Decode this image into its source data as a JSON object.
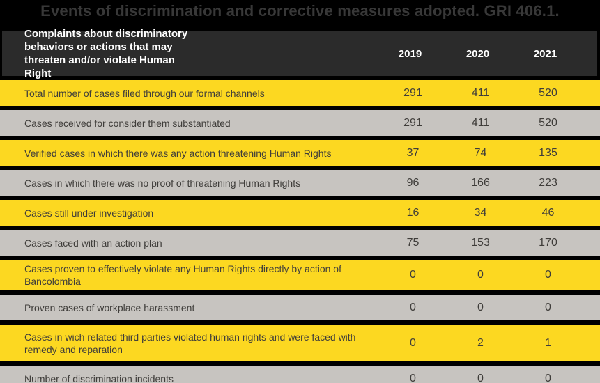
{
  "title": "Events of discrimination and corrective measures adopted. GRI 406.1.",
  "colors": {
    "page_bg": "#000000",
    "header_bg": "#2B2B2B",
    "row_yellow": "#FCD821",
    "row_gray": "#C7C4C0",
    "header_text": "#FFFFFF",
    "row_text": "#3F3D3A",
    "title_text": "#383838"
  },
  "table": {
    "header": {
      "label": "Complaints about discriminatory behaviors or actions that may threaten and/or violate Human Right",
      "years": [
        "2019",
        "2020",
        "2021"
      ]
    },
    "rows": [
      {
        "label": "Total number of cases filed through our formal channels",
        "values": [
          "291",
          "411",
          "520"
        ]
      },
      {
        "label": "Cases received for consider them substantiated",
        "values": [
          "291",
          "411",
          "520"
        ]
      },
      {
        "label": "Verified cases in which there was any action threatening Human Rights",
        "values": [
          "37",
          "74",
          "135"
        ]
      },
      {
        "label": "Cases in which there was no proof of threatening Human Rights",
        "values": [
          "96",
          "166",
          "223"
        ]
      },
      {
        "label": "Cases still under investigation",
        "values": [
          "16",
          "34",
          "46"
        ]
      },
      {
        "label": "Cases faced with an action plan",
        "values": [
          "75",
          "153",
          "170"
        ]
      },
      {
        "label": "Cases proven to effectively violate any Human Rights directly by action of Bancolombia",
        "values": [
          "0",
          "0",
          "0"
        ]
      },
      {
        "label": "Proven cases of workplace harassment",
        "values": [
          "0",
          "0",
          "0"
        ]
      },
      {
        "label": "Cases in wich related third parties violated human rights and were faced with remedy and reparation",
        "values": [
          "0",
          "2",
          "1"
        ]
      },
      {
        "label": "Number of discrimination incidents",
        "values": [
          "0",
          "0",
          "0"
        ]
      }
    ]
  },
  "chart_data": {
    "type": "table",
    "title": "Events of discrimination and corrective measures adopted. GRI 406.1.",
    "columns": [
      "Complaints about discriminatory behaviors or actions that may threaten and/or violate Human Right",
      "2019",
      "2020",
      "2021"
    ],
    "rows": [
      [
        "Total number of cases filed through our formal channels",
        291,
        411,
        520
      ],
      [
        "Cases received for consider them substantiated",
        291,
        411,
        520
      ],
      [
        "Verified cases in which there was any action threatening Human Rights",
        37,
        74,
        135
      ],
      [
        "Cases in which there was no proof of threatening Human Rights",
        96,
        166,
        223
      ],
      [
        "Cases still under investigation",
        16,
        34,
        46
      ],
      [
        "Cases faced with an action plan",
        75,
        153,
        170
      ],
      [
        "Cases proven to effectively violate any Human Rights directly by action of Bancolombia",
        0,
        0,
        0
      ],
      [
        "Proven cases of workplace harassment",
        0,
        0,
        0
      ],
      [
        "Cases in wich related third parties violated human rights and were faced with remedy and reparation",
        0,
        2,
        1
      ],
      [
        "Number of discrimination incidents",
        0,
        0,
        0
      ]
    ]
  }
}
